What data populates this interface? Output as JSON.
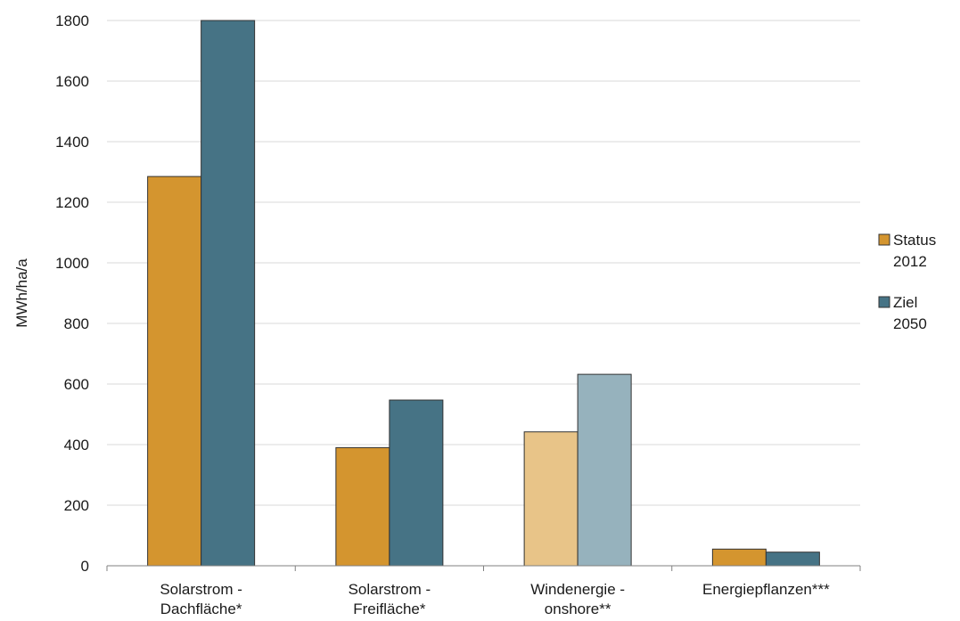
{
  "chart_data": {
    "type": "bar",
    "categories": [
      [
        "Solarstrom -",
        "Dachfläche*"
      ],
      [
        "Solarstrom -",
        "Freifläche*"
      ],
      [
        "Windenergie -",
        "onshore**"
      ],
      [
        "Energiepflanzen***"
      ]
    ],
    "series": [
      {
        "name": [
          "Status",
          "2012"
        ],
        "values": [
          1285,
          390,
          442,
          55
        ],
        "color": "#d4952f",
        "faded_color": "#e8c488"
      },
      {
        "name": [
          "Ziel",
          "2050"
        ],
        "values": [
          1800,
          547,
          632,
          45
        ],
        "color": "#467385",
        "faded_color": "#96b2bd"
      }
    ],
    "faded_category_index": 2,
    "title": "",
    "xlabel": "",
    "ylabel": "MWh/ha/a",
    "ylim": [
      0,
      1800
    ],
    "yticks": [
      0,
      200,
      400,
      600,
      800,
      1000,
      1200,
      1400,
      1600,
      1800
    ],
    "grid": true,
    "legend_position": "right"
  }
}
